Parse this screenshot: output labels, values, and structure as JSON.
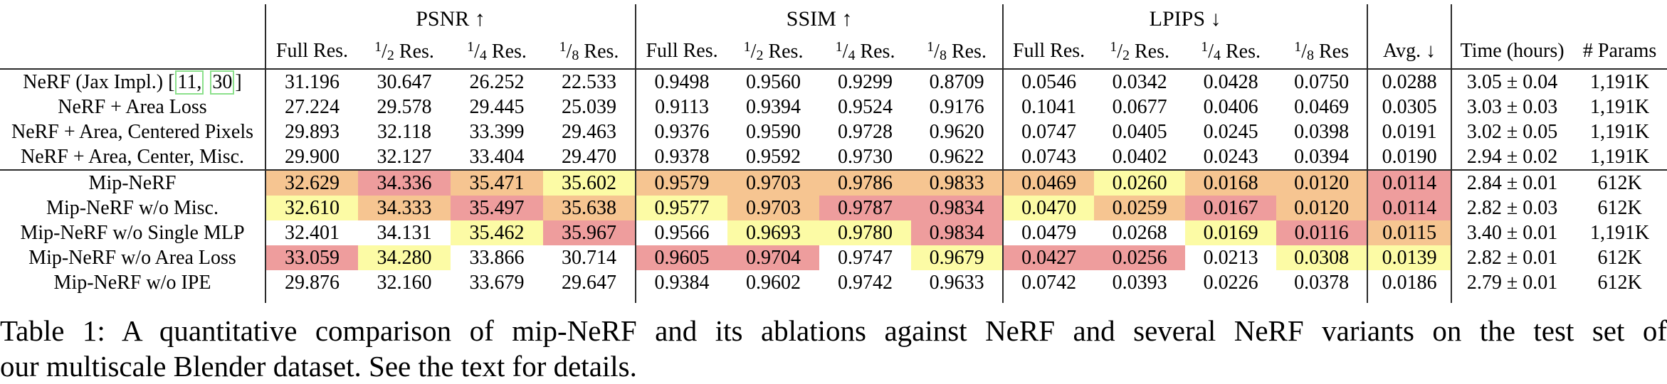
{
  "colors": {
    "best": "#ee9d9d",
    "second": "#f6c591",
    "third": "#fcfba5",
    "rule": "#2b2b2b",
    "citation_border": "#8ce08c"
  },
  "table": {
    "group_headers": [
      {
        "id": "psnr",
        "label": "PSNR ↑"
      },
      {
        "id": "ssim",
        "label": "SSIM ↑"
      },
      {
        "id": "lpips",
        "label": "LPIPS ↓"
      }
    ],
    "subheaders": {
      "psnr": [
        "Full Res.",
        "1/2 Res.",
        "1/4 Res.",
        "1/8 Res."
      ],
      "ssim": [
        "Full Res.",
        "1/2 Res.",
        "1/4 Res.",
        "1/8 Res."
      ],
      "lpips": [
        "Full Res.",
        "1/2 Res.",
        "1/4 Res.",
        "1/8 Res"
      ]
    },
    "avg_header": "Avg. ↓",
    "time_header": "Time (hours)",
    "params_header": "# Params",
    "rows": [
      {
        "label": "NeRF (Jax Impl.)",
        "citation": {
          "open": "[",
          "items": [
            "11,",
            "30"
          ],
          "close": "]"
        },
        "values": {
          "psnr": [
            "31.196",
            "30.647",
            "26.252",
            "22.533"
          ],
          "ssim": [
            "0.9498",
            "0.9560",
            "0.9299",
            "0.8709"
          ],
          "lpips": [
            "0.0546",
            "0.0342",
            "0.0428",
            "0.0750"
          ],
          "avg": "0.0288",
          "time": "3.05 ± 0.04",
          "params": "1,191K"
        },
        "hl": {
          "psnr": [
            0,
            0,
            0,
            0
          ],
          "ssim": [
            0,
            0,
            0,
            0
          ],
          "lpips": [
            0,
            0,
            0,
            0
          ],
          "avg": 0
        }
      },
      {
        "label": "NeRF + Area Loss",
        "values": {
          "psnr": [
            "27.224",
            "29.578",
            "29.445",
            "25.039"
          ],
          "ssim": [
            "0.9113",
            "0.9394",
            "0.9524",
            "0.9176"
          ],
          "lpips": [
            "0.1041",
            "0.0677",
            "0.0406",
            "0.0469"
          ],
          "avg": "0.0305",
          "time": "3.03 ± 0.03",
          "params": "1,191K"
        },
        "hl": {
          "psnr": [
            0,
            0,
            0,
            0
          ],
          "ssim": [
            0,
            0,
            0,
            0
          ],
          "lpips": [
            0,
            0,
            0,
            0
          ],
          "avg": 0
        }
      },
      {
        "label": "NeRF + Area, Centered Pixels",
        "values": {
          "psnr": [
            "29.893",
            "32.118",
            "33.399",
            "29.463"
          ],
          "ssim": [
            "0.9376",
            "0.9590",
            "0.9728",
            "0.9620"
          ],
          "lpips": [
            "0.0747",
            "0.0405",
            "0.0245",
            "0.0398"
          ],
          "avg": "0.0191",
          "time": "3.02 ± 0.05",
          "params": "1,191K"
        },
        "hl": {
          "psnr": [
            0,
            0,
            0,
            0
          ],
          "ssim": [
            0,
            0,
            0,
            0
          ],
          "lpips": [
            0,
            0,
            0,
            0
          ],
          "avg": 0
        }
      },
      {
        "label": "NeRF + Area, Center, Misc.",
        "values": {
          "psnr": [
            "29.900",
            "32.127",
            "33.404",
            "29.470"
          ],
          "ssim": [
            "0.9378",
            "0.9592",
            "0.9730",
            "0.9622"
          ],
          "lpips": [
            "0.0743",
            "0.0402",
            "0.0243",
            "0.0394"
          ],
          "avg": "0.0190",
          "time": "2.94 ± 0.02",
          "params": "1,191K"
        },
        "hl": {
          "psnr": [
            0,
            0,
            0,
            0
          ],
          "ssim": [
            0,
            0,
            0,
            0
          ],
          "lpips": [
            0,
            0,
            0,
            0
          ],
          "avg": 0
        }
      },
      {
        "label": "Mip-NeRF",
        "section_start": true,
        "values": {
          "psnr": [
            "32.629",
            "34.336",
            "35.471",
            "35.602"
          ],
          "ssim": [
            "0.9579",
            "0.9703",
            "0.9786",
            "0.9833"
          ],
          "lpips": [
            "0.0469",
            "0.0260",
            "0.0168",
            "0.0120"
          ],
          "avg": "0.0114",
          "time": "2.84 ± 0.01",
          "params": "612K"
        },
        "hl": {
          "psnr": [
            2,
            1,
            2,
            3
          ],
          "ssim": [
            2,
            2,
            2,
            2
          ],
          "lpips": [
            2,
            3,
            2,
            2
          ],
          "avg": 1
        }
      },
      {
        "label": "Mip-NeRF w/o Misc.",
        "values": {
          "psnr": [
            "32.610",
            "34.333",
            "35.497",
            "35.638"
          ],
          "ssim": [
            "0.9577",
            "0.9703",
            "0.9787",
            "0.9834"
          ],
          "lpips": [
            "0.0470",
            "0.0259",
            "0.0167",
            "0.0120"
          ],
          "avg": "0.0114",
          "time": "2.82 ± 0.03",
          "params": "612K"
        },
        "hl": {
          "psnr": [
            3,
            2,
            1,
            2
          ],
          "ssim": [
            3,
            2,
            1,
            1
          ],
          "lpips": [
            3,
            2,
            1,
            2
          ],
          "avg": 1
        }
      },
      {
        "label": "Mip-NeRF w/o Single MLP",
        "values": {
          "psnr": [
            "32.401",
            "34.131",
            "35.462",
            "35.967"
          ],
          "ssim": [
            "0.9566",
            "0.9693",
            "0.9780",
            "0.9834"
          ],
          "lpips": [
            "0.0479",
            "0.0268",
            "0.0169",
            "0.0116"
          ],
          "avg": "0.0115",
          "time": "3.40 ± 0.01",
          "params": "1,191K"
        },
        "hl": {
          "psnr": [
            0,
            0,
            3,
            1
          ],
          "ssim": [
            0,
            3,
            3,
            1
          ],
          "lpips": [
            0,
            0,
            3,
            1
          ],
          "avg": 2
        }
      },
      {
        "label": "Mip-NeRF w/o Area Loss",
        "values": {
          "psnr": [
            "33.059",
            "34.280",
            "33.866",
            "30.714"
          ],
          "ssim": [
            "0.9605",
            "0.9704",
            "0.9747",
            "0.9679"
          ],
          "lpips": [
            "0.0427",
            "0.0256",
            "0.0213",
            "0.0308"
          ],
          "avg": "0.0139",
          "time": "2.82 ± 0.01",
          "params": "612K"
        },
        "hl": {
          "psnr": [
            1,
            3,
            0,
            0
          ],
          "ssim": [
            1,
            1,
            0,
            3
          ],
          "lpips": [
            1,
            1,
            0,
            3
          ],
          "avg": 3
        }
      },
      {
        "label": "Mip-NeRF w/o IPE",
        "values": {
          "psnr": [
            "29.876",
            "32.160",
            "33.679",
            "29.647"
          ],
          "ssim": [
            "0.9384",
            "0.9602",
            "0.9742",
            "0.9633"
          ],
          "lpips": [
            "0.0742",
            "0.0393",
            "0.0226",
            "0.0378"
          ],
          "avg": "0.0186",
          "time": "2.79 ± 0.01",
          "params": "612K"
        },
        "hl": {
          "psnr": [
            0,
            0,
            0,
            0
          ],
          "ssim": [
            0,
            0,
            0,
            0
          ],
          "lpips": [
            0,
            0,
            0,
            0
          ],
          "avg": 0
        }
      }
    ]
  },
  "caption": {
    "line1": "Table 1: A quantitative comparison of mip-NeRF and its ablations against NeRF and several NeRF variants on the test set of",
    "line2": "our multiscale Blender dataset. See the text for details."
  }
}
